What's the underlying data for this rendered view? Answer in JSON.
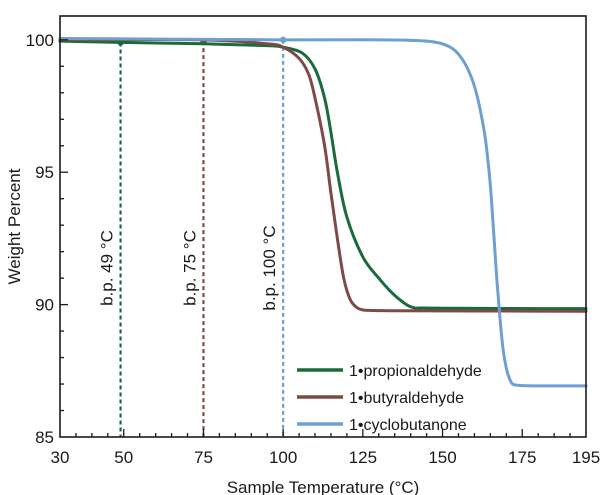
{
  "chart_data": {
    "type": "line",
    "title": "",
    "xlabel": "Sample Temperature (°C)",
    "ylabel": "Weight Percent",
    "xlim": [
      30,
      195
    ],
    "ylim": [
      85,
      100.9
    ],
    "x_ticks": [
      30,
      50,
      75,
      100,
      125,
      150,
      175,
      195
    ],
    "y_ticks": [
      85,
      90,
      95,
      100
    ],
    "grid": false,
    "legend_position": "bottom-right",
    "series": [
      {
        "name": "1•propionaldehyde",
        "color": "#1a6b3c",
        "x": [
          30,
          50,
          75,
          95,
          100,
          106,
          110,
          113,
          115,
          117,
          120,
          125,
          130,
          135,
          140,
          145,
          160,
          180,
          195
        ],
        "y": [
          99.95,
          99.9,
          99.85,
          99.78,
          99.72,
          99.5,
          98.9,
          97.8,
          96.5,
          95.0,
          93.3,
          91.8,
          91.0,
          90.35,
          89.92,
          89.87,
          89.86,
          89.85,
          89.85
        ]
      },
      {
        "name": "1•butyraldehyde",
        "color": "#7d4a46",
        "x": [
          30,
          75,
          95,
          100,
          105,
          108,
          110,
          113,
          115,
          117,
          119,
          121,
          123,
          125,
          128,
          135,
          160,
          195
        ],
        "y": [
          100.0,
          100.0,
          99.85,
          99.72,
          99.3,
          98.7,
          97.8,
          96.0,
          94.2,
          92.5,
          91.0,
          90.2,
          89.9,
          89.8,
          89.78,
          89.77,
          89.76,
          89.75
        ]
      },
      {
        "name": "1•cyclobutanone",
        "color": "#6e9fd0",
        "x": [
          30,
          100,
          130,
          145,
          152,
          156,
          159,
          161,
          163,
          164,
          165,
          166,
          167,
          168,
          169,
          170,
          171,
          172,
          174,
          180,
          195
        ],
        "y": [
          100.05,
          100.0,
          100.0,
          99.95,
          99.75,
          99.3,
          98.6,
          97.8,
          96.6,
          95.7,
          94.5,
          92.8,
          91.0,
          89.5,
          88.3,
          87.6,
          87.2,
          87.0,
          86.95,
          86.93,
          86.93
        ]
      }
    ],
    "reference_lines": [
      {
        "x": 49,
        "y": 99.9,
        "label": "b.p. 49 °C",
        "color": "#1a6b3c"
      },
      {
        "x": 75,
        "y": 99.95,
        "label": "b.p. 75 °C",
        "color": "#7d4a46"
      },
      {
        "x": 100,
        "y": 100.0,
        "label": "b.p. 100 °C",
        "color": "#6e9fd0"
      }
    ]
  }
}
